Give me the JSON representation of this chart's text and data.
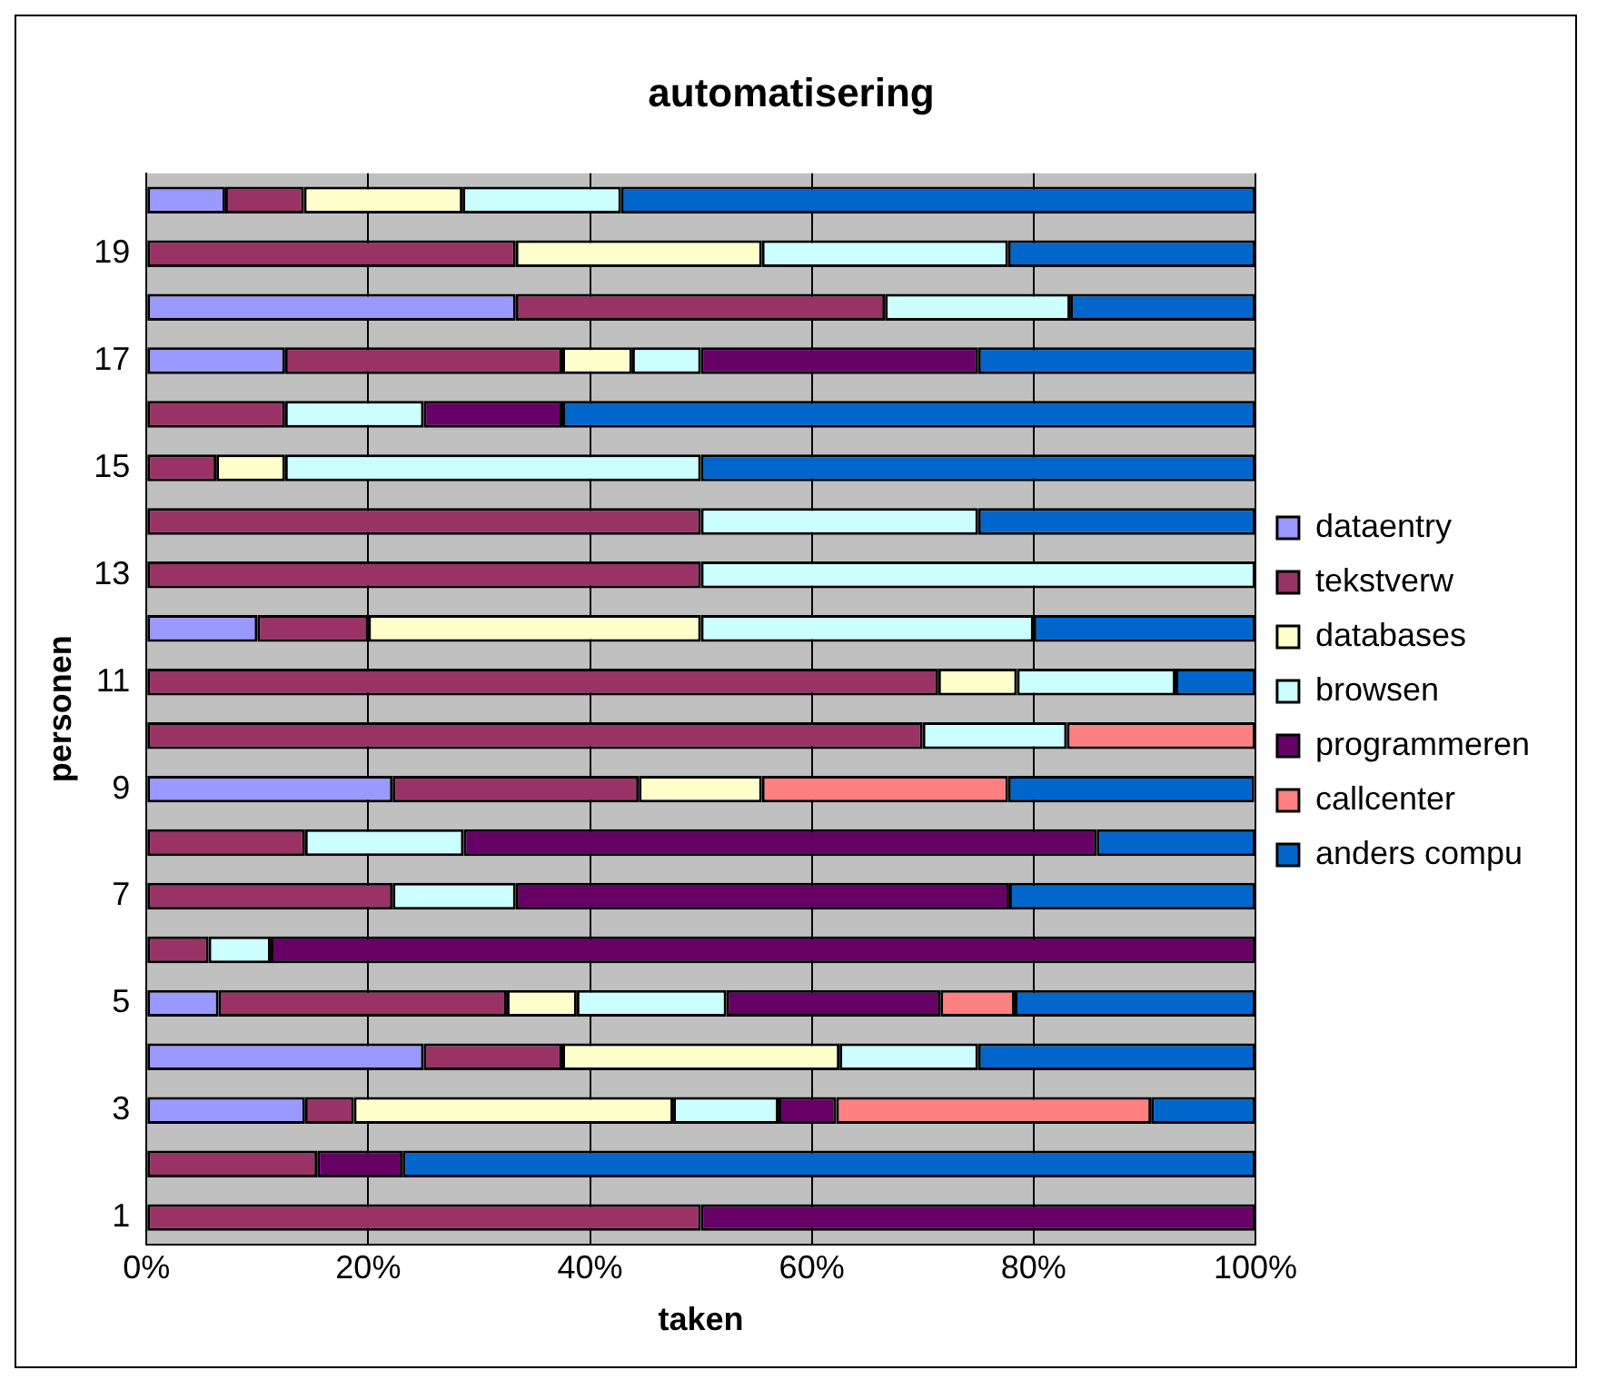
{
  "chart_data": {
    "type": "bar",
    "orientation": "horizontal",
    "stacked": true,
    "title": "automatisering",
    "xlabel": "taken",
    "ylabel": "personen",
    "categories": [
      null,
      "19",
      null,
      "17",
      null,
      "15",
      null,
      "13",
      null,
      "11",
      null,
      "9",
      null,
      "7",
      null,
      "5",
      null,
      "3",
      null,
      "1"
    ],
    "series": [
      {
        "name": "dataentry",
        "color": "#9999ff",
        "values": [
          7.1,
          0,
          33.3,
          12.5,
          0,
          0,
          0,
          0,
          10,
          0,
          0,
          22.2,
          0,
          0,
          0,
          6.5,
          25,
          14.3,
          0,
          0
        ]
      },
      {
        "name": "tekstverw",
        "color": "#993366",
        "values": [
          7.1,
          33.3,
          33.3,
          25,
          12.5,
          6.3,
          50,
          50,
          10,
          71.4,
          70,
          22.2,
          14.3,
          22.2,
          5.6,
          26,
          12.5,
          4.4,
          15.4,
          50
        ]
      },
      {
        "name": "databases",
        "color": "#ffffcc",
        "values": [
          14.3,
          22.2,
          0,
          6.3,
          0,
          6.2,
          0,
          0,
          30,
          7.1,
          0,
          11.1,
          0,
          0,
          0,
          6.3,
          25,
          28.8,
          0,
          0
        ]
      },
      {
        "name": "browsen",
        "color": "#ccffff",
        "values": [
          14.3,
          22.2,
          16.7,
          6.2,
          12.5,
          37.5,
          25,
          50,
          30,
          14.3,
          13,
          0,
          14.3,
          11.1,
          5.6,
          13.5,
          12.5,
          9.5,
          0,
          0
        ]
      },
      {
        "name": "programmeren",
        "color": "#660066",
        "values": [
          0,
          0,
          0,
          25,
          12.5,
          0,
          0,
          0,
          0,
          0,
          0,
          0,
          57.1,
          44.5,
          88.8,
          19.3,
          0,
          5.2,
          7.7,
          50
        ]
      },
      {
        "name": "callcenter",
        "color": "#ff8080",
        "values": [
          0,
          0,
          0,
          0,
          0,
          0,
          0,
          0,
          0,
          0,
          17,
          22.2,
          0,
          0,
          0,
          6.7,
          0,
          28.4,
          0,
          0
        ]
      },
      {
        "name": "anders compu",
        "color": "#0066cc",
        "values": [
          57.2,
          22.3,
          16.7,
          25,
          62.5,
          50,
          25,
          0,
          20,
          7.2,
          0,
          22.2,
          14.3,
          22.2,
          0,
          21.7,
          25,
          9.4,
          76.9,
          0
        ]
      }
    ],
    "xlim": [
      0,
      100
    ],
    "xticks": [
      {
        "value": 0,
        "label": "0%"
      },
      {
        "value": 20,
        "label": "20%"
      },
      {
        "value": 40,
        "label": "40%"
      },
      {
        "value": 60,
        "label": "60%"
      },
      {
        "value": 80,
        "label": "80%"
      },
      {
        "value": 100,
        "label": "100%"
      }
    ],
    "grid": "x",
    "legend": "right"
  }
}
